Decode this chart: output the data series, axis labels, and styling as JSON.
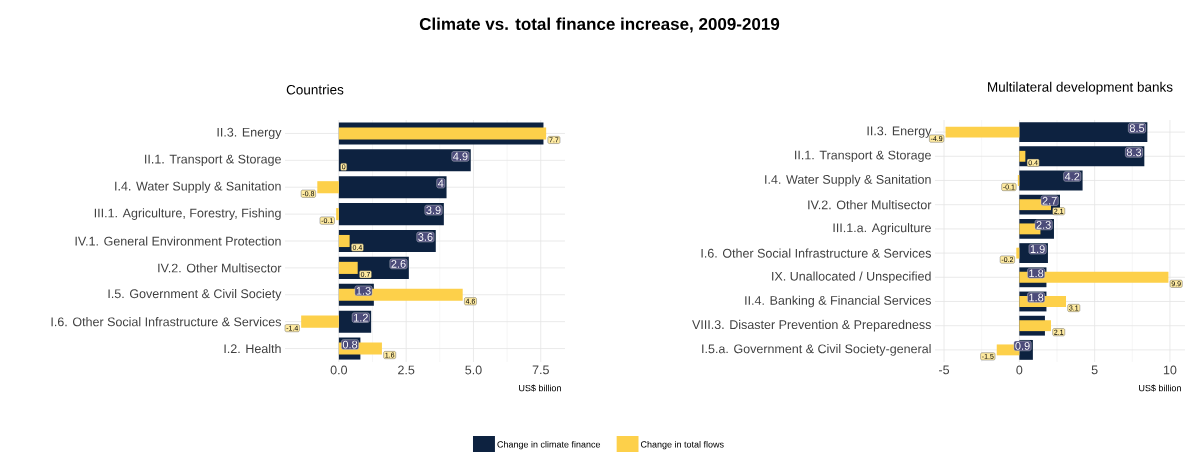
{
  "chart_data": [
    {
      "type": "bar",
      "orientation": "horizontal",
      "title": "Countries",
      "annotations": [
        "Climate vs. total finance increase, 2009-2019"
      ],
      "xlabel": "US$ billion",
      "categories": [
        "II.3. Energy",
        "II.1. Transport & Storage",
        "I.4. Water Supply & Sanitation",
        "III.1. Agriculture, Forestry, Fishing",
        "IV.1. General Environment Protection",
        "IV.2. Other Multisector",
        "I.5. Government & Civil Society",
        "I.6. Other Social Infrastructure & Services",
        "I.2. Health"
      ],
      "series": [
        {
          "name": "Change in climate finance",
          "color": "#0d2240",
          "values": [
            7.6,
            4.9,
            4,
            3.9,
            3.6,
            2.6,
            1.3,
            1.2,
            0.8
          ],
          "value_labels": [
            null,
            "4.9",
            "4",
            "3.9",
            "3.6",
            "2.6",
            "1.3",
            "1.2",
            "0.8"
          ]
        },
        {
          "name": "Change in total flows",
          "color": "#fdd04a",
          "values": [
            7.7,
            0,
            -0.8,
            -0.1,
            0.4,
            0.7,
            4.6,
            -1.4,
            1.6
          ],
          "value_labels": [
            "7.7",
            "0",
            "-0.8",
            "-0.1",
            "0.4",
            "0.7",
            "4.6",
            "-1.4",
            "1.6"
          ]
        }
      ],
      "xlim": [
        -2,
        8.4
      ],
      "xticks": [
        {
          "value": 0,
          "label": "0.0"
        },
        2.5,
        {
          "value": 5,
          "label": "5.0"
        },
        7.5
      ],
      "grid": true,
      "legend": "bottom"
    },
    {
      "type": "bar",
      "orientation": "horizontal",
      "title": "Multilateral development banks",
      "xlabel": "US$ billion",
      "categories": [
        "II.3. Energy",
        "II.1. Transport & Storage",
        "I.4. Water Supply & Sanitation",
        "IV.2. Other Multisector",
        "III.1.a. Agriculture",
        "I.6. Other Social Infrastructure & Services",
        "IX. Unallocated / Unspecified",
        "II.4. Banking & Financial Services",
        "VIII.3. Disaster Prevention & Preparedness",
        "I.5.a. Government & Civil Society-general"
      ],
      "series": [
        {
          "color": "#0d2240",
          "values": [
            8.5,
            8.3,
            4.2,
            2.7,
            2.3,
            1.9,
            1.8,
            1.8,
            1.7,
            0.9
          ],
          "value_labels": [
            "8.5",
            "8.3",
            "4.2",
            "2.7",
            "2.3",
            "1.9",
            "1.8",
            "1.8",
            null,
            "0.9"
          ]
        },
        {
          "color": "#fdd04a",
          "values": [
            -4.9,
            0.4,
            -0.1,
            2.1,
            1.4,
            -0.2,
            9.9,
            3.1,
            2.1,
            -1.5
          ],
          "value_labels": [
            "-4.9",
            "0.4",
            "-0.1",
            "2.1",
            null,
            "-0.2",
            "9.9",
            "3.1",
            "2.1",
            "-1.5"
          ]
        }
      ],
      "xlim": [
        -5.6,
        11
      ],
      "xticks": [
        -5,
        0,
        5,
        10
      ],
      "grid": true
    }
  ]
}
